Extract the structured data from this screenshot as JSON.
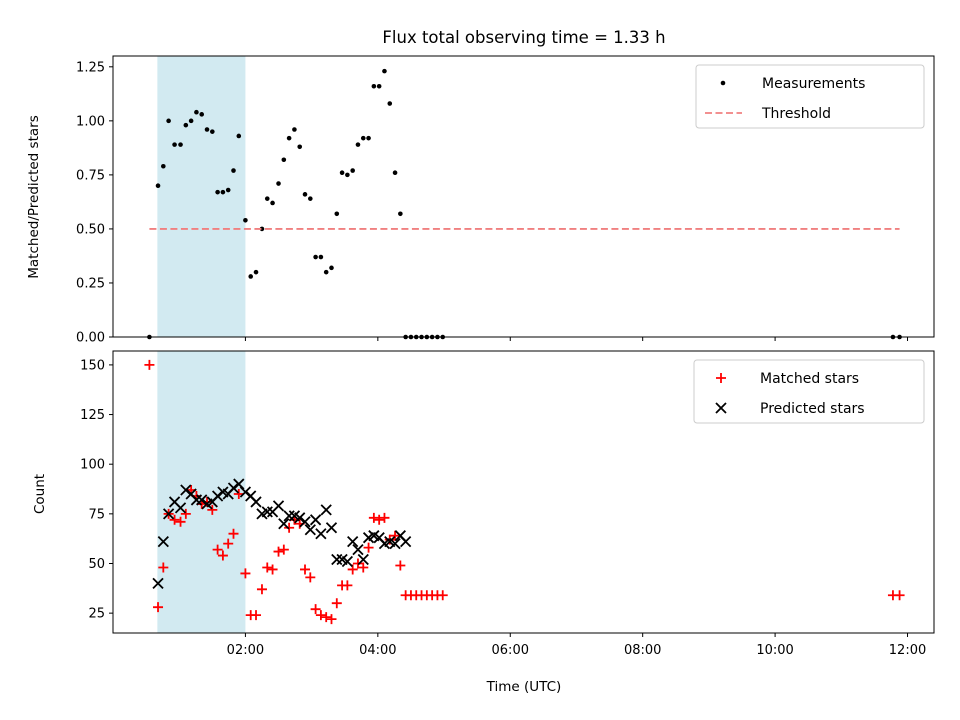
{
  "chart_data": [
    {
      "type": "scatter",
      "title": "Flux total observing time = 1.33 h",
      "xlabel": "",
      "ylabel": "Matched/Predicted stars",
      "xlim": [
        0.0,
        12.4
      ],
      "ylim": [
        0,
        1.3
      ],
      "yticks": [
        0,
        0.25,
        0.5,
        0.75,
        1.0,
        1.25
      ],
      "ytick_labels": [
        "0.00",
        "0.25",
        "0.50",
        "0.75",
        "1.00",
        "1.25"
      ],
      "shaded_region": {
        "x": [
          0.67,
          2.0
        ],
        "color": "#add8e6"
      },
      "legend": [
        "Measurements",
        "Threshold"
      ],
      "legend_position": "top-right",
      "series": [
        {
          "name": "Measurements",
          "color": "#000000",
          "marker": "dot",
          "x": [
            0.55,
            0.68,
            0.76,
            0.84,
            0.93,
            1.02,
            1.1,
            1.18,
            1.26,
            1.34,
            1.42,
            1.5,
            1.58,
            1.66,
            1.74,
            1.82,
            1.9,
            2.0,
            2.08,
            2.16,
            2.25,
            2.33,
            2.41,
            2.5,
            2.58,
            2.66,
            2.74,
            2.82,
            2.9,
            2.98,
            3.06,
            3.14,
            3.22,
            3.3,
            3.38,
            3.46,
            3.54,
            3.62,
            3.7,
            3.78,
            3.86,
            3.94,
            4.02,
            4.1,
            4.18,
            4.26,
            4.34,
            4.42,
            4.5,
            4.58,
            4.66,
            4.74,
            4.82,
            4.9,
            4.98,
            11.78,
            11.88
          ],
          "y": [
            0.0,
            0.7,
            0.79,
            1.0,
            0.89,
            0.89,
            0.98,
            1.0,
            1.04,
            1.03,
            0.96,
            0.95,
            0.67,
            0.67,
            0.68,
            0.77,
            0.93,
            0.54,
            0.28,
            0.3,
            0.5,
            0.64,
            0.62,
            0.71,
            0.82,
            0.92,
            0.96,
            0.88,
            0.66,
            0.64,
            0.37,
            0.37,
            0.3,
            0.32,
            0.57,
            0.76,
            0.75,
            0.77,
            0.89,
            0.92,
            0.92,
            1.16,
            1.16,
            1.23,
            1.08,
            0.76,
            0.57,
            0.0,
            0.0,
            0.0,
            0.0,
            0.0,
            0.0,
            0.0,
            0.0,
            0.0,
            0.0
          ]
        },
        {
          "name": "Threshold",
          "color": "#f08080",
          "line": "dashed",
          "x": [
            0.55,
            11.88
          ],
          "y": [
            0.5,
            0.5
          ]
        }
      ]
    },
    {
      "type": "scatter",
      "title": "",
      "xlabel": "Time (UTC)",
      "ylabel": "Count",
      "xlim": [
        0.0,
        12.4
      ],
      "ylim": [
        15,
        157
      ],
      "yticks": [
        25,
        50,
        75,
        100,
        125,
        150
      ],
      "ytick_labels": [
        "25",
        "50",
        "75",
        "100",
        "125",
        "150"
      ],
      "xticks": [
        2,
        4,
        6,
        8,
        10,
        12
      ],
      "xtick_labels": [
        "02:00",
        "04:00",
        "06:00",
        "08:00",
        "10:00",
        "12:00"
      ],
      "shaded_region": {
        "x": [
          0.67,
          2.0
        ],
        "color": "#add8e6"
      },
      "legend": [
        "Matched stars",
        "Predicted stars"
      ],
      "legend_position": "top-right",
      "series": [
        {
          "name": "Matched stars",
          "color": "#ff0000",
          "marker": "plus",
          "x": [
            0.55,
            0.68,
            0.76,
            0.84,
            0.93,
            1.02,
            1.1,
            1.18,
            1.26,
            1.34,
            1.42,
            1.5,
            1.58,
            1.66,
            1.74,
            1.82,
            1.9,
            2.0,
            2.08,
            2.16,
            2.25,
            2.33,
            2.41,
            2.5,
            2.58,
            2.66,
            2.74,
            2.82,
            2.9,
            2.98,
            3.06,
            3.14,
            3.22,
            3.3,
            3.38,
            3.46,
            3.54,
            3.62,
            3.7,
            3.78,
            3.86,
            3.94,
            4.02,
            4.1,
            4.18,
            4.26,
            4.34,
            4.42,
            4.5,
            4.58,
            4.66,
            4.74,
            4.82,
            4.9,
            4.98,
            11.78,
            11.88
          ],
          "y": [
            150,
            28,
            48,
            75,
            72,
            71,
            75,
            87,
            84,
            80,
            81,
            77,
            57,
            54,
            60,
            65,
            85,
            45,
            24,
            24,
            37,
            48,
            47,
            56,
            57,
            68,
            72,
            70,
            47,
            43,
            27,
            24,
            23,
            22,
            30,
            39,
            39,
            47,
            50,
            48,
            58,
            73,
            72,
            73,
            62,
            64,
            49,
            34,
            34,
            34,
            34,
            34,
            34,
            34,
            34,
            34,
            34
          ]
        },
        {
          "name": "Predicted stars",
          "color": "#000000",
          "marker": "x",
          "x": [
            0.68,
            0.76,
            0.84,
            0.93,
            1.02,
            1.1,
            1.18,
            1.26,
            1.34,
            1.42,
            1.5,
            1.58,
            1.66,
            1.74,
            1.82,
            1.9,
            2.0,
            2.08,
            2.16,
            2.25,
            2.33,
            2.41,
            2.5,
            2.58,
            2.66,
            2.74,
            2.82,
            2.9,
            2.98,
            3.06,
            3.14,
            3.22,
            3.3,
            3.38,
            3.46,
            3.54,
            3.62,
            3.7,
            3.78,
            3.86,
            3.94,
            4.02,
            4.1,
            4.18,
            4.26,
            4.34,
            4.42
          ],
          "y": [
            40,
            61,
            75,
            81,
            78,
            87,
            85,
            82,
            82,
            80,
            81,
            84,
            86,
            85,
            88,
            90,
            86,
            84,
            81,
            75,
            76,
            76,
            79,
            70,
            74,
            74,
            73,
            71,
            67,
            72,
            65,
            77,
            68,
            52,
            52,
            51,
            61,
            57,
            52,
            63,
            64,
            63,
            60,
            61,
            60,
            64,
            61
          ]
        }
      ]
    }
  ]
}
